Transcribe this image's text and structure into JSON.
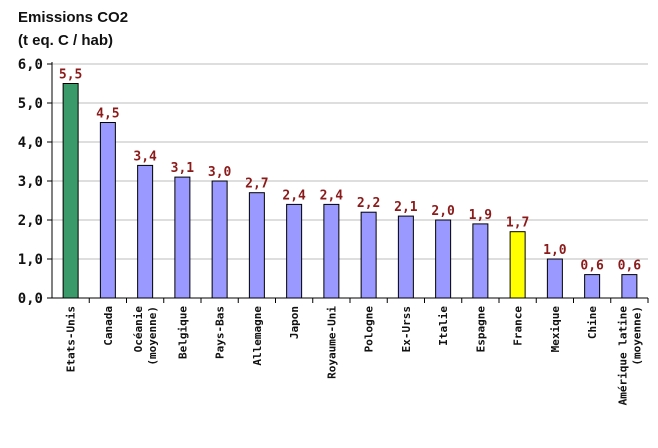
{
  "chart_data": {
    "type": "bar",
    "title_lines": [
      "Emissions CO2",
      "(t eq. C / hab)"
    ],
    "ylim": [
      0,
      6
    ],
    "yticks": [
      "0,0",
      "1,0",
      "2,0",
      "3,0",
      "4,0",
      "5,0",
      "6,0"
    ],
    "grid": "horizontal",
    "categories": [
      [
        "Etats-Unis"
      ],
      [
        "Canada"
      ],
      [
        "Océanie",
        "(moyenne)"
      ],
      [
        "Belgique"
      ],
      [
        "Pays-Bas"
      ],
      [
        "Allemagne"
      ],
      [
        "Japon"
      ],
      [
        "Royaume-Uni"
      ],
      [
        "Pologne"
      ],
      [
        "Ex-Urss"
      ],
      [
        "Italie"
      ],
      [
        "Espagne"
      ],
      [
        "France"
      ],
      [
        "Mexique"
      ],
      [
        "Chine"
      ],
      [
        "Amérique latine",
        "(moyenne)"
      ]
    ],
    "values": [
      5.5,
      4.5,
      3.4,
      3.1,
      3.0,
      2.7,
      2.4,
      2.4,
      2.2,
      2.1,
      2.0,
      1.9,
      1.7,
      1.0,
      0.6,
      0.6
    ],
    "value_labels": [
      "5,5",
      "4,5",
      "3,4",
      "3,1",
      "3,0",
      "2,7",
      "2,4",
      "2,4",
      "2,2",
      "2,1",
      "2,0",
      "1,9",
      "1,7",
      "1,0",
      "0,6",
      "0,6"
    ],
    "colors": {
      "default": "#9999ff",
      "highlight_first": "#3a9a6a",
      "highlight_france": "#ffff00",
      "label": "#8b1a1a",
      "grid": "#bdbdbd"
    },
    "bar_colors": [
      "#3a9a6a",
      "#9999ff",
      "#9999ff",
      "#9999ff",
      "#9999ff",
      "#9999ff",
      "#9999ff",
      "#9999ff",
      "#9999ff",
      "#9999ff",
      "#9999ff",
      "#9999ff",
      "#ffff00",
      "#9999ff",
      "#9999ff",
      "#9999ff"
    ]
  }
}
